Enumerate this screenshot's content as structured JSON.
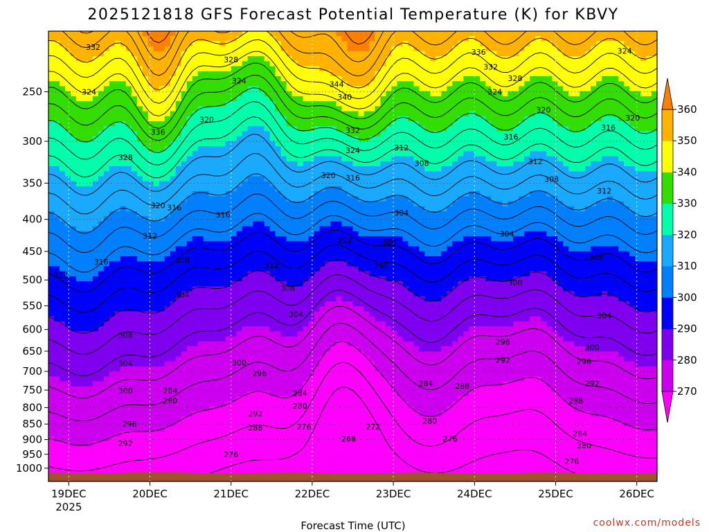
{
  "chart_data": {
    "type": "contour",
    "title": "2025121818 GFS Forecast Potential Temperature (K) for KBVY",
    "xlabel": "Forecast Time (UTC)",
    "ylabel": "",
    "x_ticks": [
      {
        "label": "19DEC",
        "sublabel": "2025",
        "t": 0
      },
      {
        "label": "20DEC",
        "t": 1
      },
      {
        "label": "21DEC",
        "t": 2
      },
      {
        "label": "22DEC",
        "t": 3
      },
      {
        "label": "23DEC",
        "t": 4
      },
      {
        "label": "24DEC",
        "t": 5
      },
      {
        "label": "25DEC",
        "t": 6
      },
      {
        "label": "26DEC",
        "t": 7
      }
    ],
    "xlim": [
      -0.25,
      7.25
    ],
    "y_axis": {
      "scale": "log",
      "inverted": true,
      "ylim": [
        1050,
        200
      ]
    },
    "y_ticks": [
      250,
      300,
      350,
      400,
      450,
      500,
      550,
      600,
      650,
      700,
      750,
      800,
      850,
      900,
      950,
      1000
    ],
    "colorbar": {
      "levels": [
        270,
        280,
        290,
        300,
        310,
        320,
        330,
        340,
        350,
        360
      ],
      "labels": [
        "270",
        "280",
        "290",
        "300",
        "310",
        "320",
        "330",
        "340",
        "350",
        "360"
      ],
      "colors": [
        "#ff00ff",
        "#cc00ee",
        "#7f00ee",
        "#0000ff",
        "#0080ff",
        "#19aaff",
        "#00ffaa",
        "#33dd00",
        "#ffff00",
        "#ffb300",
        "#ff7f00"
      ]
    },
    "contour_labels": [
      {
        "v": "332",
        "t": 0.3,
        "p": 212
      },
      {
        "v": "324",
        "t": 0.25,
        "p": 250
      },
      {
        "v": "328",
        "t": 0.7,
        "p": 318
      },
      {
        "v": "336",
        "t": 1.1,
        "p": 290
      },
      {
        "v": "328",
        "t": 2.0,
        "p": 222
      },
      {
        "v": "324",
        "t": 2.1,
        "p": 240
      },
      {
        "v": "320",
        "t": 1.7,
        "p": 277
      },
      {
        "v": "316",
        "t": 1.3,
        "p": 383
      },
      {
        "v": "320",
        "t": 1.1,
        "p": 380
      },
      {
        "v": "316",
        "t": 1.9,
        "p": 393
      },
      {
        "v": "312",
        "t": 1.0,
        "p": 425
      },
      {
        "v": "308",
        "t": 1.4,
        "p": 464
      },
      {
        "v": "316",
        "t": 0.4,
        "p": 468
      },
      {
        "v": "312",
        "t": -0.1,
        "p": 490
      },
      {
        "v": "304",
        "t": 1.4,
        "p": 528
      },
      {
        "v": "308",
        "t": 0.7,
        "p": 613
      },
      {
        "v": "304",
        "t": 0.7,
        "p": 680
      },
      {
        "v": "300",
        "t": 0.7,
        "p": 752
      },
      {
        "v": "296",
        "t": 0.75,
        "p": 850
      },
      {
        "v": "292",
        "t": 0.7,
        "p": 912
      },
      {
        "v": "284",
        "t": 1.25,
        "p": 752
      },
      {
        "v": "280",
        "t": 1.25,
        "p": 780
      },
      {
        "v": "276",
        "t": 2.0,
        "p": 950
      },
      {
        "v": "312",
        "t": 2.5,
        "p": 474
      },
      {
        "v": "308",
        "t": 2.7,
        "p": 515
      },
      {
        "v": "304",
        "t": 2.8,
        "p": 567
      },
      {
        "v": "300",
        "t": 2.1,
        "p": 678
      },
      {
        "v": "296",
        "t": 2.35,
        "p": 705
      },
      {
        "v": "292",
        "t": 2.3,
        "p": 818
      },
      {
        "v": "288",
        "t": 2.3,
        "p": 862
      },
      {
        "v": "284",
        "t": 2.85,
        "p": 758
      },
      {
        "v": "280",
        "t": 2.85,
        "p": 795
      },
      {
        "v": "276",
        "t": 2.9,
        "p": 858
      },
      {
        "v": "272",
        "t": 3.75,
        "p": 858
      },
      {
        "v": "268",
        "t": 3.45,
        "p": 898
      },
      {
        "v": "344",
        "t": 3.3,
        "p": 243
      },
      {
        "v": "340",
        "t": 3.4,
        "p": 255
      },
      {
        "v": "332",
        "t": 3.5,
        "p": 288
      },
      {
        "v": "324",
        "t": 3.5,
        "p": 310
      },
      {
        "v": "320",
        "t": 3.2,
        "p": 340
      },
      {
        "v": "316",
        "t": 3.5,
        "p": 343
      },
      {
        "v": "312",
        "t": 4.1,
        "p": 307
      },
      {
        "v": "308",
        "t": 4.35,
        "p": 325
      },
      {
        "v": "304",
        "t": 4.1,
        "p": 390
      },
      {
        "v": "292",
        "t": 3.4,
        "p": 432
      },
      {
        "v": "300",
        "t": 3.95,
        "p": 435
      },
      {
        "v": "296",
        "t": 3.85,
        "p": 475
      },
      {
        "v": "284",
        "t": 4.4,
        "p": 732
      },
      {
        "v": "280",
        "t": 4.45,
        "p": 840
      },
      {
        "v": "276",
        "t": 4.7,
        "p": 898
      },
      {
        "v": "288",
        "t": 4.85,
        "p": 738
      },
      {
        "v": "336",
        "t": 5.05,
        "p": 216
      },
      {
        "v": "332",
        "t": 5.2,
        "p": 228
      },
      {
        "v": "328",
        "t": 5.5,
        "p": 238
      },
      {
        "v": "324",
        "t": 5.25,
        "p": 250
      },
      {
        "v": "320",
        "t": 5.85,
        "p": 267
      },
      {
        "v": "316",
        "t": 5.45,
        "p": 295
      },
      {
        "v": "312",
        "t": 5.75,
        "p": 323
      },
      {
        "v": "308",
        "t": 5.95,
        "p": 345
      },
      {
        "v": "304",
        "t": 5.4,
        "p": 422
      },
      {
        "v": "300",
        "t": 5.5,
        "p": 505
      },
      {
        "v": "296",
        "t": 5.35,
        "p": 628
      },
      {
        "v": "292",
        "t": 5.35,
        "p": 672
      },
      {
        "v": "288",
        "t": 6.25,
        "p": 780
      },
      {
        "v": "284",
        "t": 6.3,
        "p": 880
      },
      {
        "v": "280",
        "t": 6.35,
        "p": 920
      },
      {
        "v": "276",
        "t": 6.2,
        "p": 975
      },
      {
        "v": "324",
        "t": 6.85,
        "p": 215
      },
      {
        "v": "320",
        "t": 6.95,
        "p": 275
      },
      {
        "v": "316",
        "t": 6.65,
        "p": 285
      },
      {
        "v": "312",
        "t": 6.6,
        "p": 360
      },
      {
        "v": "308",
        "t": 6.5,
        "p": 460
      },
      {
        "v": "304",
        "t": 6.6,
        "p": 570
      },
      {
        "v": "300",
        "t": 6.45,
        "p": 640
      },
      {
        "v": "296",
        "t": 6.35,
        "p": 675
      },
      {
        "v": "292",
        "t": 6.45,
        "p": 732
      }
    ],
    "credit": "coolwx.com/models"
  }
}
